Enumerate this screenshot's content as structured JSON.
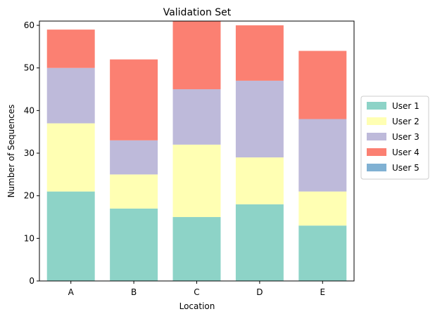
{
  "chart_data": {
    "type": "bar",
    "stacked": true,
    "title": "Validation Set",
    "xlabel": "Location",
    "ylabel": "Number of Sequences",
    "categories": [
      "A",
      "B",
      "C",
      "D",
      "E"
    ],
    "ylim": [
      0,
      61
    ],
    "yticks": [
      0,
      10,
      20,
      30,
      40,
      50,
      60
    ],
    "grid": false,
    "legend_position": "right",
    "series": [
      {
        "name": "User 1",
        "color": "#8dd3c7",
        "values": [
          21,
          17,
          15,
          18,
          13
        ]
      },
      {
        "name": "User 2",
        "color": "#ffffb3",
        "values": [
          16,
          8,
          17,
          11,
          8
        ]
      },
      {
        "name": "User 3",
        "color": "#bebada",
        "values": [
          13,
          8,
          13,
          18,
          17
        ]
      },
      {
        "name": "User 4",
        "color": "#fb8072",
        "values": [
          9,
          19,
          16,
          13,
          16
        ]
      },
      {
        "name": "User 5",
        "color": "#80b1d3",
        "values": [
          0,
          0,
          0,
          0,
          0
        ]
      }
    ]
  }
}
